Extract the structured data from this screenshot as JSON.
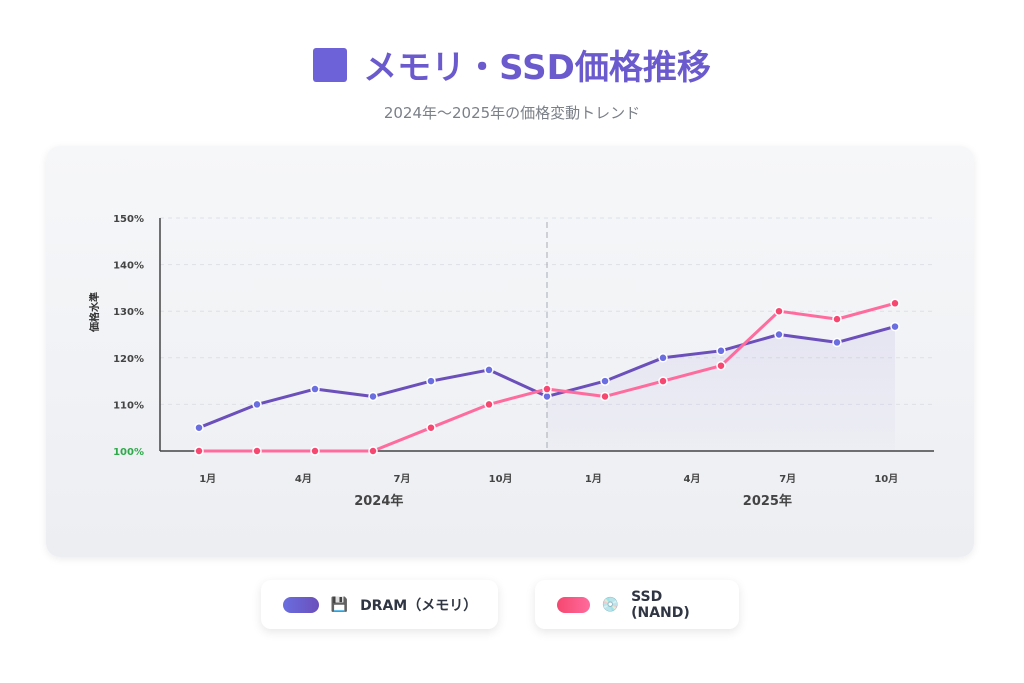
{
  "header": {
    "title": "メモリ・SSD価格推移",
    "subtitle": "2024年〜2025年の価格変動トレンド"
  },
  "legend": [
    {
      "label": "DRAM（メモリ）",
      "icon": "floppy-disk-icon",
      "glyph": "💾"
    },
    {
      "label": "SSD (NAND)",
      "icon": "disc-icon",
      "glyph": "💿"
    }
  ],
  "chart_data": {
    "type": "line",
    "title": "メモリ・SSD価格推移",
    "ylabel": "価格水準",
    "ylim": [
      100,
      150
    ],
    "yticks": [
      "100%",
      "110%",
      "120%",
      "130%",
      "140%",
      "150%"
    ],
    "ytick_values": [
      100,
      110,
      120,
      130,
      140,
      150
    ],
    "x_index": [
      0,
      1,
      2,
      3,
      4,
      5,
      6,
      7,
      8,
      9,
      10,
      11,
      12
    ],
    "xtick_labels": [
      {
        "i": 0.15,
        "label": "1月"
      },
      {
        "i": 1.8,
        "label": "4月"
      },
      {
        "i": 3.5,
        "label": "7月"
      },
      {
        "i": 5.2,
        "label": "10月"
      },
      {
        "i": 6.8,
        "label": "1月"
      },
      {
        "i": 8.5,
        "label": "4月"
      },
      {
        "i": 10.15,
        "label": "7月"
      },
      {
        "i": 11.85,
        "label": "10月"
      }
    ],
    "year_labels": [
      {
        "i": 3.1,
        "label": "2024年"
      },
      {
        "i": 9.8,
        "label": "2025年"
      }
    ],
    "year_divider_index": 6,
    "grid": true,
    "series": [
      {
        "name": "DRAM（メモリ）",
        "color": "#6a6ee0",
        "color2": "#6b4fbb",
        "values": [
          105,
          110,
          113.3,
          111.7,
          115,
          117.4,
          111.7,
          115,
          120,
          121.5,
          125,
          123.3,
          126.7
        ]
      },
      {
        "name": "SSD (NAND)",
        "color": "#f5476f",
        "color2": "#ff6b9d",
        "values": [
          100,
          100,
          100,
          100,
          105,
          110,
          113.3,
          111.7,
          115,
          118.3,
          130,
          128.3,
          131.7
        ]
      }
    ]
  }
}
